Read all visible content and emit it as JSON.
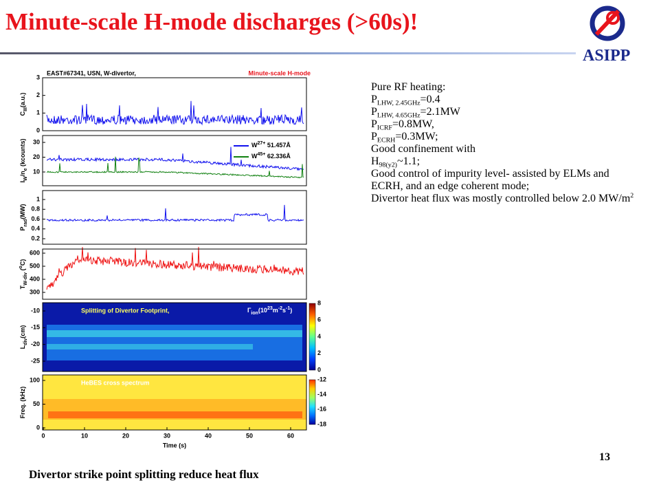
{
  "header": {
    "title": "Minute-scale H-mode discharges (>60s)!",
    "logo": "ASIPP"
  },
  "figure": {
    "shot": "EAST#67341, USN, W-divertor,",
    "tag": "Minute-scale H-mode",
    "panels": [
      {
        "ylabel": [
          {
            "text": "C"
          },
          {
            "text": "III",
            "style": "sub"
          },
          {
            "text": "(a.u.)"
          }
        ],
        "yticks": [
          "0",
          "1",
          "2",
          "3"
        ]
      },
      {
        "ylabel": [
          {
            "text": "I"
          },
          {
            "text": "W",
            "style": "sub"
          },
          {
            "text": "/n"
          },
          {
            "text": "e",
            "style": "sub"
          },
          {
            "text": " (kcounts)"
          }
        ],
        "yticks": [
          "10",
          "20",
          "30"
        ],
        "legend": [
          [
            {
              "text": "W"
            },
            {
              "text": "27+",
              "style": "sup"
            },
            {
              "text": " 51.457Å"
            }
          ],
          [
            {
              "text": "W"
            },
            {
              "text": "45+",
              "style": "sup"
            },
            {
              "text": " 62.336Å"
            }
          ]
        ]
      },
      {
        "ylabel": [
          {
            "text": "P"
          },
          {
            "text": "rad",
            "style": "sub"
          },
          {
            "text": "(MW)"
          }
        ],
        "yticks": [
          "0.2",
          "0.4",
          "0.6",
          "0.8",
          "1"
        ]
      },
      {
        "ylabel": [
          {
            "text": "T"
          },
          {
            "text": "W-div",
            "style": "sub"
          },
          {
            "text": " ("
          },
          {
            "text": "o",
            "style": "sup"
          },
          {
            "text": "C)"
          }
        ],
        "yticks": [
          "300",
          "400",
          "500",
          "600"
        ]
      },
      {
        "ylabel": [
          {
            "text": "L"
          },
          {
            "text": "div",
            "style": "sub"
          },
          {
            "text": "(cm)"
          }
        ],
        "yticks": [
          "-25",
          "-20",
          "-15",
          "-10"
        ],
        "annotation": "Splitting of Divertor Footprint,",
        "colorbar_label": [
          {
            "text": "Γ"
          },
          {
            "text": "ion",
            "style": "sub"
          },
          {
            "text": "(10"
          },
          {
            "text": "23",
            "style": "sup"
          },
          {
            "text": "m"
          },
          {
            "text": "-2",
            "style": "sup"
          },
          {
            "text": "s"
          },
          {
            "text": "-1",
            "style": "sup"
          },
          {
            "text": ")"
          }
        ],
        "colorbar_ticks": [
          "0",
          "2",
          "4",
          "6",
          "8"
        ]
      },
      {
        "ylabel": [
          {
            "text": "Freq. (kHz)"
          }
        ],
        "yticks": [
          "0",
          "50",
          "100"
        ],
        "annotation": "HeBES cross spectrum",
        "colorbar_ticks": [
          "-18",
          "-16",
          "-14",
          "-12"
        ]
      }
    ],
    "xlabel": "Time (s)",
    "xticks": [
      "0",
      "10",
      "20",
      "30",
      "40",
      "50",
      "60"
    ],
    "caption": "Divertor strike point splitting  reduce heat flux"
  },
  "bullets": [
    {
      "lines": [
        [
          {
            "text": "Pure RF heating:"
          }
        ]
      ],
      "details": [
        [
          {
            "text": "P"
          },
          {
            "text": "LHW, 2.45GHz",
            "style": "sub"
          },
          {
            "text": "=0.4"
          }
        ],
        [
          {
            "text": "P"
          },
          {
            "text": "LHW, 4.65GHz",
            "style": "sub"
          },
          {
            "text": "=2.1MW"
          }
        ],
        [
          {
            "text": "P"
          },
          {
            "text": "ICRF",
            "style": "sub"
          },
          {
            "text": "=0.8MW,"
          }
        ],
        [
          {
            "text": "P"
          },
          {
            "text": "ECRH",
            "style": "sub"
          },
          {
            "text": "=0.3MW;"
          }
        ]
      ]
    },
    {
      "lines": [
        [
          {
            "text": "Good confinement with"
          }
        ]
      ],
      "details": [
        [
          {
            "text": "H"
          },
          {
            "text": "98(y2)",
            "style": "sub"
          },
          {
            "text": "~1.1;"
          }
        ]
      ]
    },
    {
      "lines": [
        [
          {
            "text": "Good control of impurity level- assisted by ELMs and ECRH, and an edge coherent mode;"
          }
        ]
      ]
    },
    {
      "lines": [
        [
          {
            "text": "Divertor heat flux was mostly controlled below 2.0 MW/m"
          },
          {
            "text": "2",
            "style": "sup"
          }
        ]
      ]
    }
  ],
  "page_number": "13"
}
